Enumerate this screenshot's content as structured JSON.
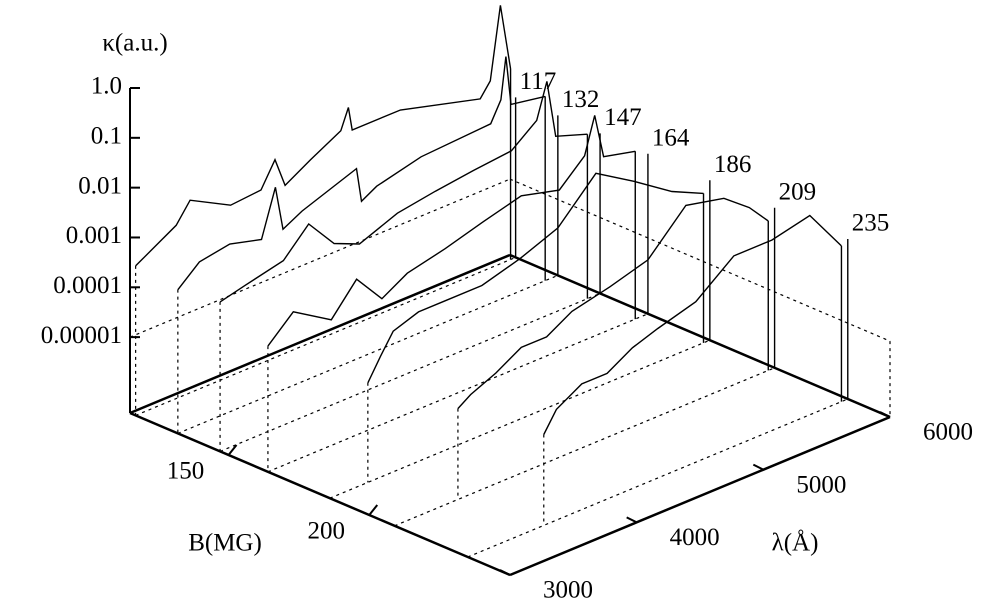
{
  "chart_data": {
    "type": "waterfall3d",
    "zlabel": "κ(a.u.)",
    "xlabel": "B(MG)",
    "ylabel": "λ(Å)",
    "xlim": [
      115,
      250
    ],
    "xticks": [
      150,
      200
    ],
    "ylim": [
      3000,
      6000
    ],
    "yticks": [
      3000,
      4000,
      5000,
      6000
    ],
    "zlim": [
      3e-07,
      1
    ],
    "zticks": [
      {
        "value": 1,
        "label": "1.0"
      },
      0.1,
      0.01,
      0.001,
      0.0001,
      1e-05
    ],
    "zscale": "log",
    "color": "#000000",
    "series": [
      {
        "b": 117,
        "x": [
          3000,
          3320,
          3430,
          3750,
          3990,
          4100,
          4180,
          4380,
          4620,
          4680,
          4710,
          5090,
          5720,
          5800,
          5880,
          5960
        ],
        "values": [
          0.0003,
          0.0009,
          0.0022,
          0.0008,
          0.0009,
          0.0028,
          0.0007,
          0.0014,
          0.003,
          0.0076,
          0.0025,
          0.0025,
          0.0009,
          0.0017,
          0.046,
          0.002
        ]
      },
      {
        "b": 132,
        "x": [
          3000,
          3170,
          3410,
          3660,
          3770,
          3830,
          3980,
          4410,
          4450,
          4570,
          4920,
          5470,
          5550,
          5590,
          5630,
          5900
        ],
        "values": [
          0.00023,
          0.00055,
          0.0007,
          0.00047,
          0.004,
          0.0005,
          0.0008,
          0.002,
          0.0004,
          0.0006,
          0.001,
          0.0012,
          0.003,
          0.02,
          0.002,
          0.0015
        ]
      },
      {
        "b": 147,
        "x": [
          3000,
          3200,
          3500,
          3700,
          3900,
          4100,
          4400,
          4700,
          5000,
          5300,
          5500,
          5580,
          5650,
          5900
        ],
        "values": [
          0.0003,
          0.0004,
          0.0006,
          0.002,
          0.0005,
          0.0003,
          0.0006,
          0.0008,
          0.001,
          0.0012,
          0.003,
          0.015,
          0.001,
          0.0006
        ]
      },
      {
        "b": 164,
        "x": [
          3000,
          3200,
          3500,
          3700,
          3900,
          4100,
          4400,
          4700,
          5000,
          5300,
          5500,
          5580,
          5650,
          5900
        ],
        "values": [
          0.0001,
          0.0003,
          0.0001,
          0.0004,
          0.0001,
          0.0002,
          0.0003,
          0.0005,
          0.0008,
          0.0005,
          0.0015,
          0.008,
          0.001,
          0.0007
        ]
      },
      {
        "b": 186,
        "x": [
          3300,
          3400,
          3500,
          3700,
          3900,
          4200,
          4500,
          4800,
          5100,
          5400,
          5700,
          5950
        ],
        "values": [
          3e-05,
          8e-05,
          0.0002,
          0.0003,
          0.0003,
          0.0003,
          0.0005,
          0.001,
          0.006,
          0.002,
          0.0006,
          0.0003
        ]
      },
      {
        "b": 209,
        "x": [
          3500,
          3600,
          3800,
          4000,
          4200,
          4400,
          4700,
          5000,
          5300,
          5600,
          5800,
          5950
        ],
        "values": [
          2e-05,
          3e-05,
          5e-05,
          0.0001,
          0.0001,
          0.0002,
          0.0003,
          0.0005,
          0.003,
          0.002,
          0.0008,
          0.0003
        ]
      },
      {
        "b": 235,
        "x": [
          3600,
          3700,
          3900,
          4100,
          4300,
          4500,
          4800,
          5100,
          5400,
          5700,
          5950
        ],
        "values": [
          2e-05,
          5e-05,
          0.0001,
          0.0001,
          0.0002,
          0.0003,
          0.0005,
          0.002,
          0.002,
          0.003,
          0.0004
        ]
      }
    ]
  }
}
